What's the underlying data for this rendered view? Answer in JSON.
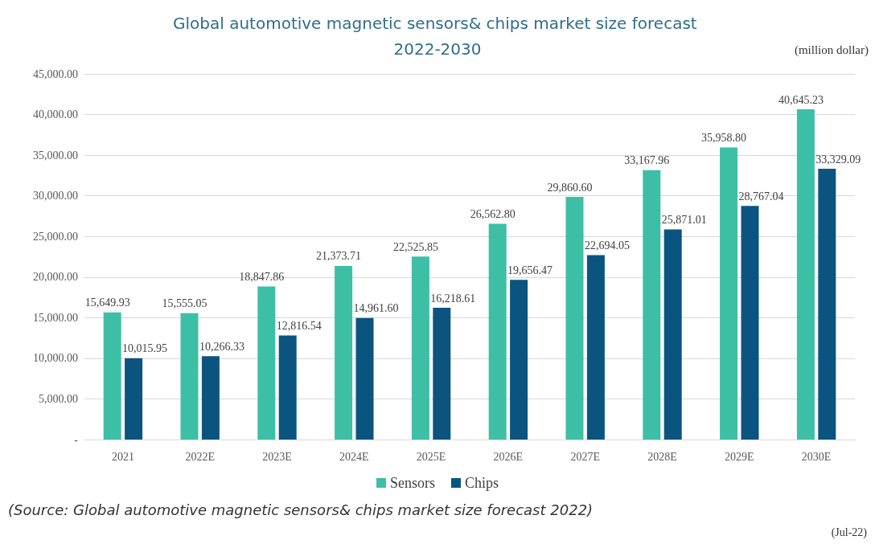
{
  "chart_data": {
    "type": "bar",
    "title": "Global automotive magnetic sensors& chips market size forecast 2022-2030",
    "ylabel": "(million dollar)",
    "categories": [
      "2021",
      "2022E",
      "2023E",
      "2024E",
      "2025E",
      "2026E",
      "2027E",
      "2028E",
      "2029E",
      "2030E"
    ],
    "series": [
      {
        "name": "Sensors",
        "color": "#3dbfa5",
        "values": [
          15649.93,
          15555.05,
          18847.86,
          21373.71,
          22525.85,
          26562.8,
          29860.6,
          33167.96,
          35958.8,
          40645.23
        ],
        "value_labels": [
          "15,649.93",
          "15,555.05",
          "18,847.86",
          "21,373.71",
          "22,525.85",
          "26,562.80",
          "29,860.60",
          "33,167.96",
          "35,958.80",
          "40,645.23"
        ]
      },
      {
        "name": "Chips",
        "color": "#0b5480",
        "values": [
          10015.95,
          10266.33,
          12816.54,
          14961.6,
          16218.61,
          19656.47,
          22694.05,
          25871.01,
          28767.04,
          33329.09
        ],
        "value_labels": [
          "10,015.95",
          "10,266.33",
          "12,816.54",
          "14,961.60",
          "16,218.61",
          "19,656.47",
          "22,694.05",
          "25,871.01",
          "28,767.04",
          "33,329.09"
        ]
      }
    ],
    "ylim": [
      0,
      45000
    ],
    "yticks": [
      {
        "value": 0,
        "label": "-"
      },
      {
        "value": 5000,
        "label": "5,000.00"
      },
      {
        "value": 10000,
        "label": "10,000.00"
      },
      {
        "value": 15000,
        "label": "15,000.00"
      },
      {
        "value": 20000,
        "label": "20,000.00"
      },
      {
        "value": 25000,
        "label": "25,000.00"
      },
      {
        "value": 30000,
        "label": "30,000.00"
      },
      {
        "value": 35000,
        "label": "35,000.00"
      },
      {
        "value": 40000,
        "label": "40,000.00"
      },
      {
        "value": 45000,
        "label": "45,000.00"
      }
    ],
    "grid": "y",
    "legend": "bottom",
    "annotations": [
      "(Source: Global automotive magnetic sensors& chips market size forecast 2022)",
      "(Jul-22)"
    ]
  }
}
